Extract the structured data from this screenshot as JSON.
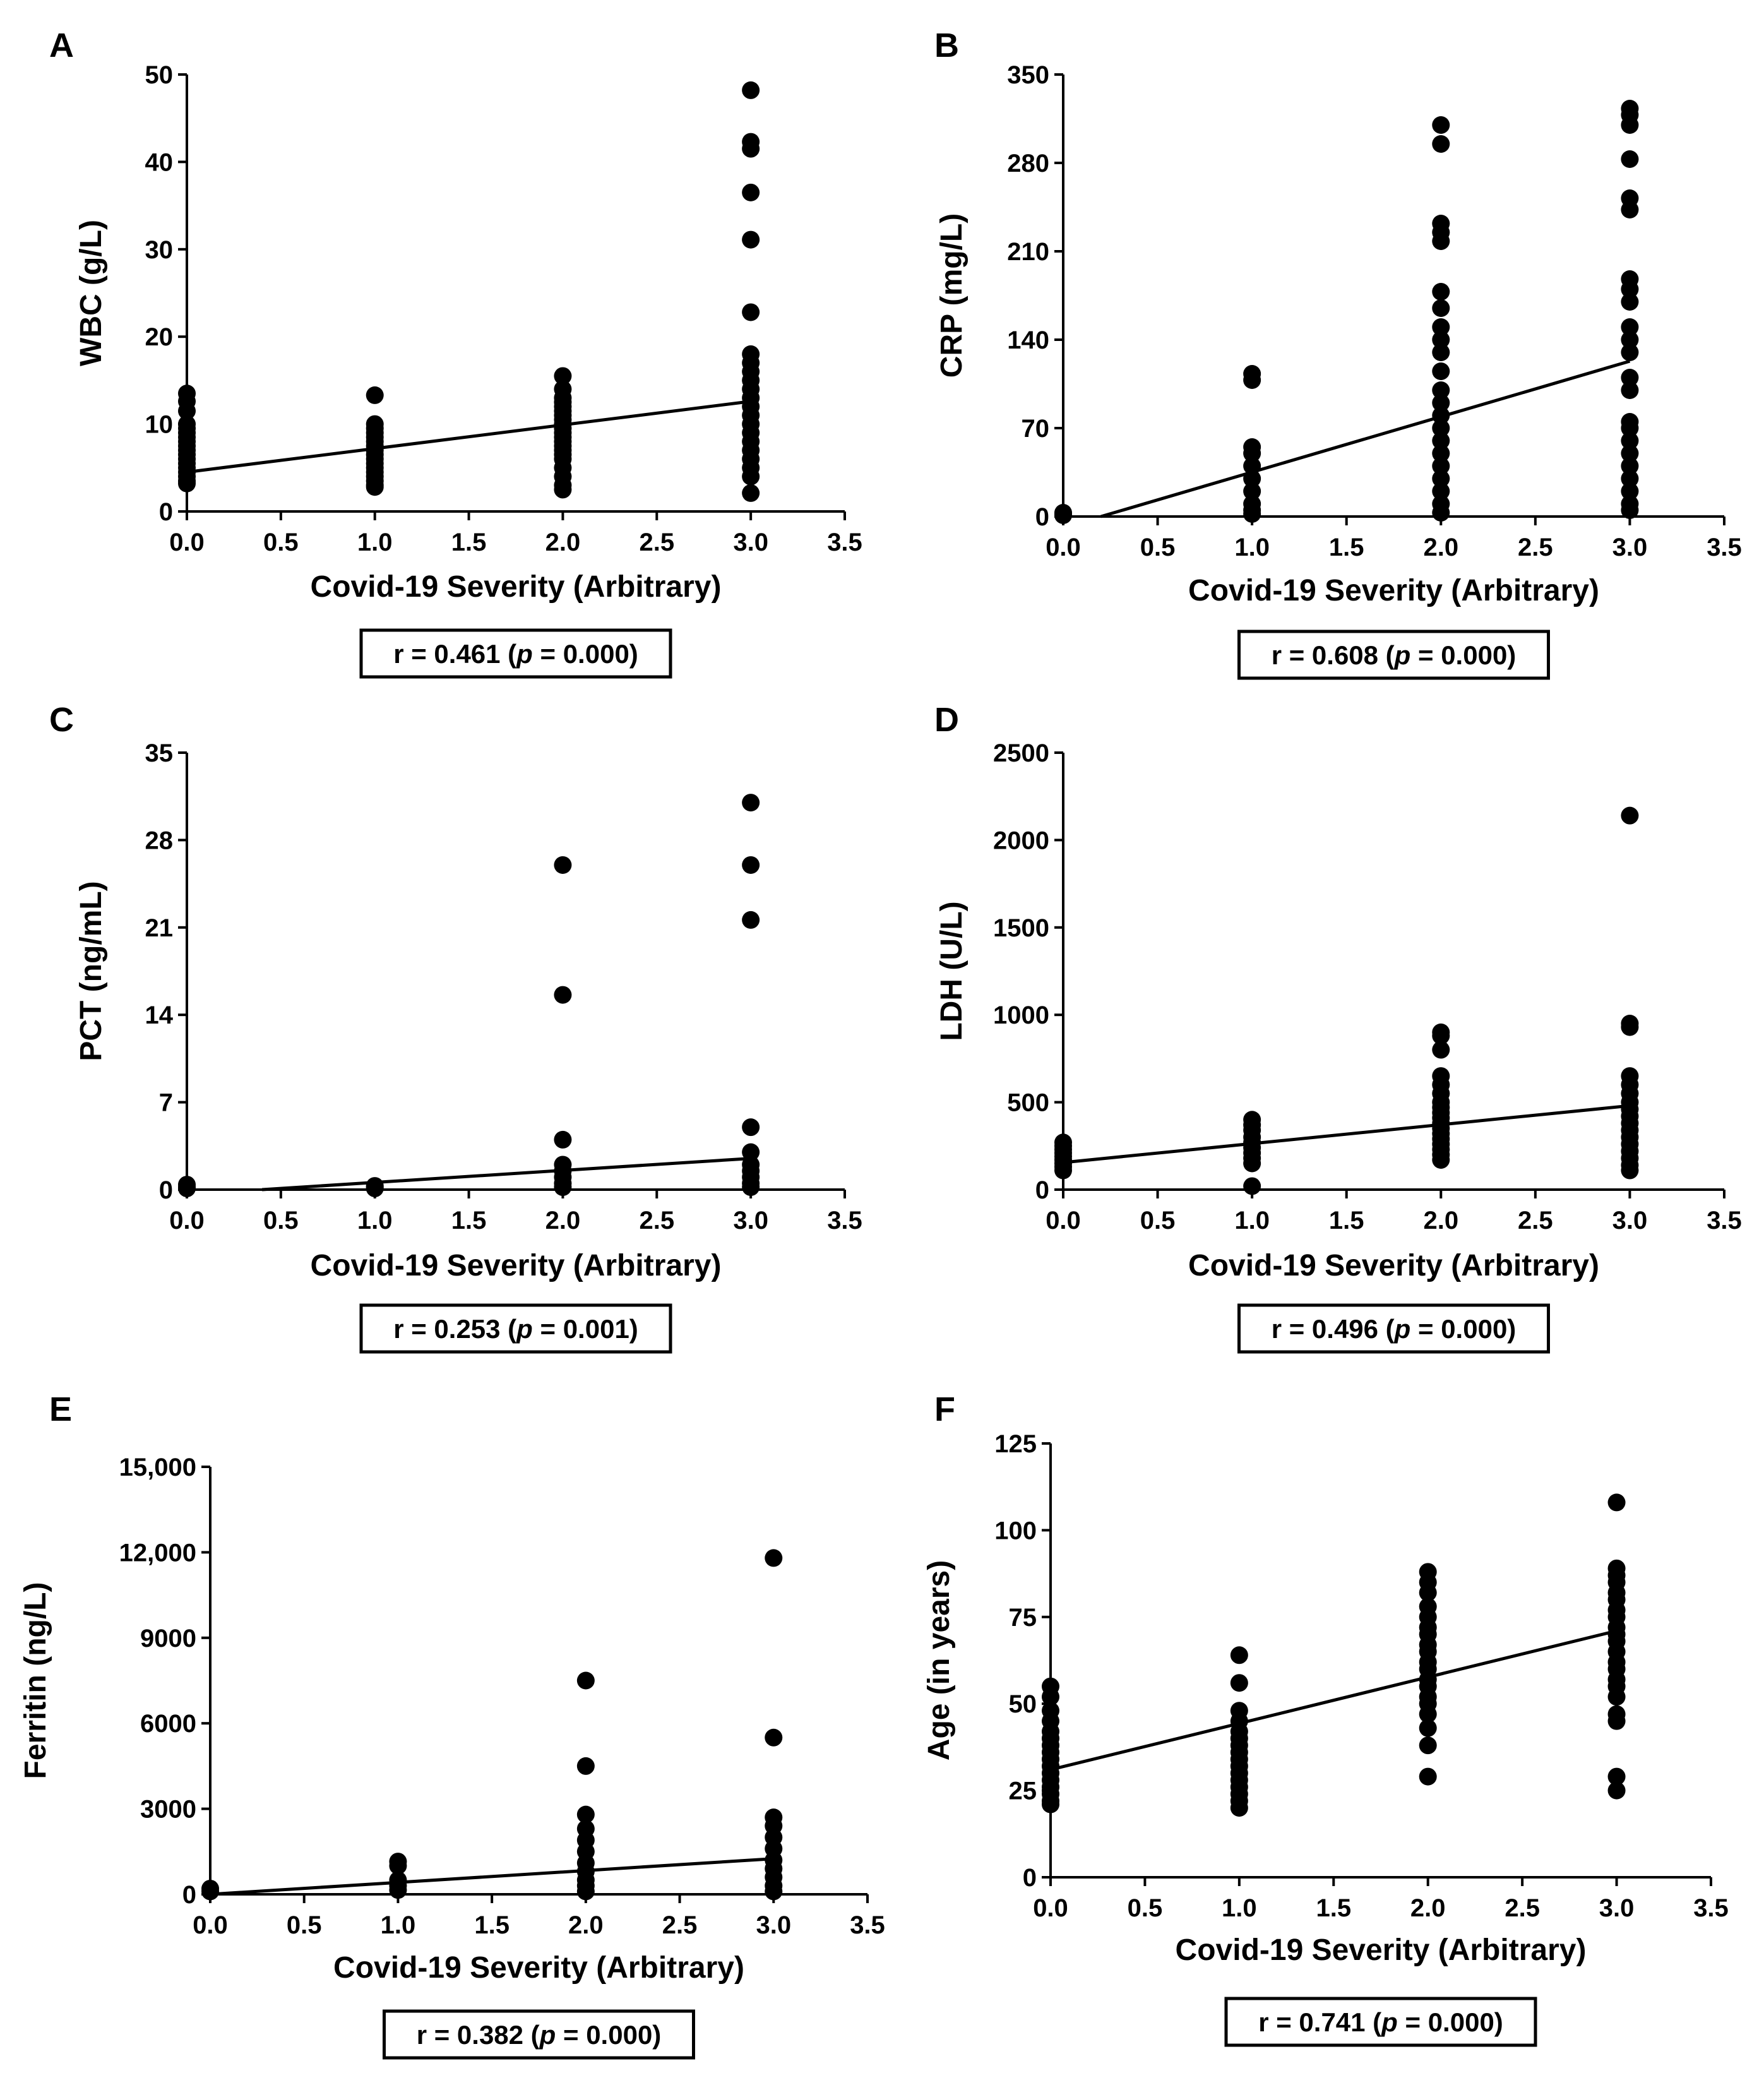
{
  "figure": {
    "chart_data": [
      {
        "type": "scatter",
        "panel_label": "A",
        "xlabel": "Covid-19 Severity (Arbitrary)",
        "ylabel": "WBC (g/L)",
        "xlim": [
          0,
          3.5
        ],
        "ylim": [
          0,
          50
        ],
        "x_ticks": [
          "0.0",
          "0.5",
          "1.0",
          "1.5",
          "2.0",
          "2.5",
          "3.0",
          "3.5"
        ],
        "y_ticks": [
          "0",
          "10",
          "20",
          "30",
          "40",
          "50"
        ],
        "regression": [
          [
            0,
            4.5
          ],
          [
            3,
            12.6
          ]
        ],
        "correlation": {
          "prefix": "r = 0.461 (",
          "p_symbol": "p",
          "suffix": " = 0.000)"
        },
        "series": [
          {
            "x": 0,
            "values": [
              13.5,
              12.6,
              11.5,
              10,
              9.5,
              9,
              8.5,
              8,
              7.5,
              7,
              6.5,
              6,
              5.5,
              5,
              4.5,
              4,
              3.5,
              3.2
            ]
          },
          {
            "x": 1,
            "values": [
              13.3,
              10,
              9.5,
              9,
              8.5,
              8,
              7.5,
              7,
              6.5,
              6,
              5.5,
              5,
              4.5,
              4,
              3.5,
              3,
              2.8
            ]
          },
          {
            "x": 2,
            "values": [
              15.5,
              14,
              13,
              12.5,
              12,
              11.5,
              11,
              10.5,
              10,
              9.5,
              9,
              8.5,
              8,
              7.5,
              7,
              6.5,
              6,
              5,
              4,
              3,
              2.5
            ]
          },
          {
            "x": 3,
            "values": [
              48.2,
              42.3,
              41.5,
              36.5,
              31.1,
              22.8,
              18,
              17,
              16,
              15,
              14,
              13,
              12,
              11,
              10,
              9,
              8,
              7,
              6,
              5,
              4,
              2.1
            ]
          }
        ]
      },
      {
        "type": "scatter",
        "panel_label": "B",
        "xlabel": "Covid-19 Severity (Arbitrary)",
        "ylabel": "CRP (mg/L)",
        "xlim": [
          0,
          3.5
        ],
        "ylim": [
          0,
          350
        ],
        "x_ticks": [
          "0.0",
          "0.5",
          "1.0",
          "1.5",
          "2.0",
          "2.5",
          "3.0",
          "3.5"
        ],
        "y_ticks": [
          "0",
          "70",
          "140",
          "210",
          "280",
          "350"
        ],
        "regression": [
          [
            0.2,
            0
          ],
          [
            3,
            123
          ]
        ],
        "correlation": {
          "prefix": "r = 0.608 (",
          "p_symbol": "p",
          "suffix": " = 0.000)"
        },
        "series": [
          {
            "x": 0,
            "values": [
              3,
              2,
              1
            ]
          },
          {
            "x": 1,
            "values": [
              113,
              108,
              55,
              50,
              40,
              30,
              20,
              10,
              5,
              2
            ]
          },
          {
            "x": 2,
            "values": [
              310,
              295,
              232,
              225,
              218,
              178,
              165,
              150,
              140,
              130,
              115,
              100,
              90,
              80,
              70,
              60,
              50,
              40,
              30,
              20,
              10,
              3
            ]
          },
          {
            "x": 3,
            "values": [
              323,
              318,
              310,
              283,
              252,
              243,
              188,
              180,
              170,
              150,
              140,
              130,
              110,
              100,
              75,
              70,
              60,
              50,
              40,
              30,
              20,
              10,
              5
            ]
          }
        ]
      },
      {
        "type": "scatter",
        "panel_label": "C",
        "xlabel": "Covid-19 Severity (Arbitrary)",
        "ylabel": "PCT (ng/mL)",
        "xlim": [
          0,
          3.5
        ],
        "ylim": [
          0,
          35
        ],
        "x_ticks": [
          "0.0",
          "0.5",
          "1.0",
          "1.5",
          "2.0",
          "2.5",
          "3.0",
          "3.5"
        ],
        "y_ticks": [
          "0",
          "7",
          "14",
          "21",
          "28",
          "35"
        ],
        "regression": [
          [
            0.4,
            0
          ],
          [
            3,
            2.5
          ]
        ],
        "correlation": {
          "prefix": "r = 0.253 (",
          "p_symbol": "p",
          "suffix": " = 0.001)"
        },
        "series": [
          {
            "x": 0,
            "values": [
              0.4,
              0.2,
              0.1
            ]
          },
          {
            "x": 1,
            "values": [
              0.3,
              0.2,
              0.1
            ]
          },
          {
            "x": 2,
            "values": [
              26,
              15.6,
              4,
              2,
              1.5,
              1,
              0.5,
              0.2
            ]
          },
          {
            "x": 3,
            "values": [
              31,
              26,
              21.6,
              5,
              3,
              2,
              1.5,
              1,
              0.5,
              0.2
            ]
          }
        ]
      },
      {
        "type": "scatter",
        "panel_label": "D",
        "xlabel": "Covid-19 Severity (Arbitrary)",
        "ylabel": "LDH (U/L)",
        "xlim": [
          0,
          3.5
        ],
        "ylim": [
          0,
          2500
        ],
        "x_ticks": [
          "0.0",
          "0.5",
          "1.0",
          "1.5",
          "2.0",
          "2.5",
          "3.0",
          "3.5"
        ],
        "y_ticks": [
          "0",
          "500",
          "1000",
          "1500",
          "2000",
          "2500"
        ],
        "regression": [
          [
            0,
            155
          ],
          [
            3,
            480
          ]
        ],
        "correlation": {
          "prefix": "r = 0.496 (",
          "p_symbol": "p",
          "suffix": " = 0.000)"
        },
        "series": [
          {
            "x": 0,
            "values": [
              270,
              250,
              230,
              210,
              190,
              170,
              150,
              130,
              110
            ]
          },
          {
            "x": 1,
            "values": [
              400,
              370,
              340,
              300,
              270,
              240,
              210,
              180,
              150,
              20
            ]
          },
          {
            "x": 2,
            "values": [
              900,
              880,
              800,
              650,
              600,
              550,
              500,
              470,
              440,
              410,
              380,
              350,
              320,
              290,
              260,
              230,
              200,
              170
            ]
          },
          {
            "x": 3,
            "values": [
              2140,
              950,
              930,
              650,
              600,
              550,
              500,
              460,
              420,
              380,
              340,
              300,
              260,
              220,
              180,
              140,
              110
            ]
          }
        ]
      },
      {
        "type": "scatter",
        "panel_label": "E",
        "xlabel": "Covid-19 Severity (Arbitrary)",
        "ylabel": "Ferritin (ng/L)",
        "xlim": [
          0,
          3.5
        ],
        "ylim": [
          0,
          15000
        ],
        "x_ticks": [
          "0.0",
          "0.5",
          "1.0",
          "1.5",
          "2.0",
          "2.5",
          "3.0",
          "3.5"
        ],
        "y_ticks": [
          "0",
          "3000",
          "6000",
          "9000",
          "12,000",
          "15,000"
        ],
        "regression": [
          [
            0,
            0
          ],
          [
            3,
            1250
          ]
        ],
        "correlation": {
          "prefix": "r = 0.382 (",
          "p_symbol": "p",
          "suffix": " = 0.000)"
        },
        "series": [
          {
            "x": 0,
            "values": [
              200,
              100
            ]
          },
          {
            "x": 1,
            "values": [
              1150,
              1000,
              500,
              300,
              150
            ]
          },
          {
            "x": 2,
            "values": [
              7500,
              4500,
              2800,
              2300,
              1900,
              1500,
              1100,
              800,
              500,
              300,
              100
            ]
          },
          {
            "x": 3,
            "values": [
              11800,
              5500,
              2700,
              2400,
              2000,
              1600,
              1200,
              900,
              600,
              300,
              100
            ]
          }
        ]
      },
      {
        "type": "scatter",
        "panel_label": "F",
        "xlabel": "Covid-19 Severity (Arbitrary)",
        "ylabel": "Age (in years)",
        "xlim": [
          0,
          3.5
        ],
        "ylim": [
          0,
          125
        ],
        "x_ticks": [
          "0.0",
          "0.5",
          "1.0",
          "1.5",
          "2.0",
          "2.5",
          "3.0",
          "3.5"
        ],
        "y_ticks": [
          "0",
          "25",
          "50",
          "75",
          "100",
          "125"
        ],
        "regression": [
          [
            0,
            31
          ],
          [
            3,
            71
          ]
        ],
        "correlation": {
          "prefix": "r = 0.741 (",
          "p_symbol": "p",
          "suffix": " = 0.000)"
        },
        "series": [
          {
            "x": 0,
            "values": [
              55,
              52,
              48,
              45,
              42,
              40,
              38,
              36,
              34,
              32,
              30,
              28,
              26,
              24,
              22,
              21
            ]
          },
          {
            "x": 1,
            "values": [
              64,
              56,
              48,
              45,
              42,
              40,
              38,
              36,
              34,
              32,
              30,
              28,
              26,
              24,
              22,
              20
            ]
          },
          {
            "x": 2,
            "values": [
              88,
              85,
              82,
              78,
              75,
              72,
              70,
              67,
              65,
              62,
              60,
              57,
              55,
              52,
              50,
              47,
              43,
              38,
              29
            ]
          },
          {
            "x": 3,
            "values": [
              108,
              89,
              87,
              85,
              82,
              80,
              77,
              75,
              72,
              70,
              68,
              65,
              62,
              60,
              57,
              55,
              52,
              47,
              45,
              29,
              25
            ]
          }
        ]
      }
    ]
  }
}
